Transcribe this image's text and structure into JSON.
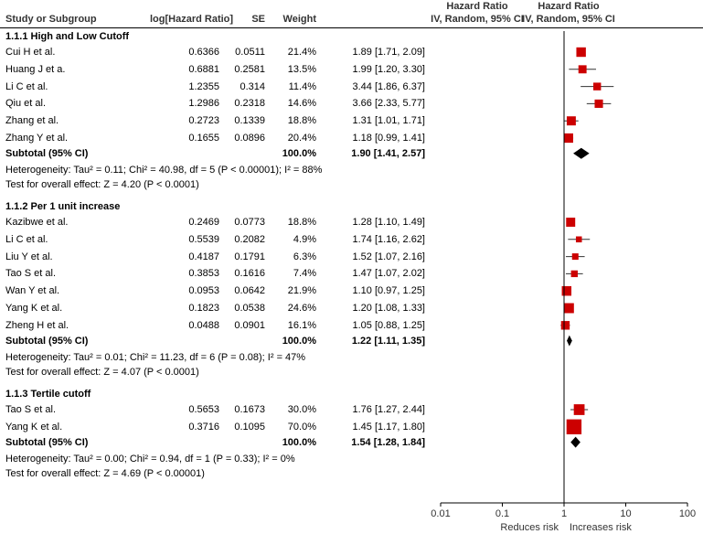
{
  "header": {
    "study": "Study or Subgroup",
    "logHR": "log[Hazard Ratio]",
    "se": "SE",
    "weight": "Weight",
    "hr_title": "Hazard Ratio",
    "hr_sub": "IV, Random, 95% CI",
    "plot_title": "Hazard Ratio",
    "plot_sub": "IV, Random, 95% CI"
  },
  "chart_data": {
    "type": "forest",
    "x_scale": "log",
    "xlim": [
      0.01,
      100
    ],
    "x_ticks": [
      "0.01",
      "0.1",
      "1",
      "10",
      "100"
    ],
    "favours_left": "Reduces risk",
    "favours_right": "Increases risk",
    "colors": {
      "study_marker": "#cc0000",
      "ci_line": "#333333",
      "diamond": "#000000"
    },
    "groups": [
      {
        "name": "1.1.1 High and Low Cutoff",
        "studies": [
          {
            "study": "Cui H et al.",
            "logHR": "0.6366",
            "se": "0.0511",
            "weight": "21.4%",
            "hr_text": "1.89 [1.71, 2.09]",
            "hr": 1.89,
            "lo": 1.71,
            "hi": 2.09,
            "w": 21.4
          },
          {
            "study": "Huang J et a.",
            "logHR": "0.6881",
            "se": "0.2581",
            "weight": "13.5%",
            "hr_text": "1.99 [1.20, 3.30]",
            "hr": 1.99,
            "lo": 1.2,
            "hi": 3.3,
            "w": 13.5
          },
          {
            "study": "Li C et al.",
            "logHR": "1.2355",
            "se": "0.314",
            "weight": "11.4%",
            "hr_text": "3.44 [1.86, 6.37]",
            "hr": 3.44,
            "lo": 1.86,
            "hi": 6.37,
            "w": 11.4
          },
          {
            "study": "Qiu et al.",
            "logHR": "1.2986",
            "se": "0.2318",
            "weight": "14.6%",
            "hr_text": "3.66 [2.33, 5.77]",
            "hr": 3.66,
            "lo": 2.33,
            "hi": 5.77,
            "w": 14.6
          },
          {
            "study": "Zhang et al.",
            "logHR": "0.2723",
            "se": "0.1339",
            "weight": "18.8%",
            "hr_text": "1.31 [1.01, 1.71]",
            "hr": 1.31,
            "lo": 1.01,
            "hi": 1.71,
            "w": 18.8
          },
          {
            "study": "Zhang Y et al.",
            "logHR": "0.1655",
            "se": "0.0896",
            "weight": "20.4%",
            "hr_text": "1.18 [0.99, 1.41]",
            "hr": 1.18,
            "lo": 0.99,
            "hi": 1.41,
            "w": 20.4
          }
        ],
        "subtotal": {
          "label": "Subtotal (95% CI)",
          "weight": "100.0%",
          "hr_text": "1.90 [1.41, 2.57]",
          "hr": 1.9,
          "lo": 1.41,
          "hi": 2.57
        },
        "heterogeneity": "Heterogeneity: Tau² = 0.11; Chi² = 40.98, df = 5 (P < 0.00001); I² = 88%",
        "overall": "Test for overall effect: Z = 4.20 (P < 0.0001)"
      },
      {
        "name": "1.1.2 Per 1 unit increase",
        "studies": [
          {
            "study": "Kazibwe et al.",
            "logHR": "0.2469",
            "se": "0.0773",
            "weight": "18.8%",
            "hr_text": "1.28 [1.10, 1.49]",
            "hr": 1.28,
            "lo": 1.1,
            "hi": 1.49,
            "w": 18.8
          },
          {
            "study": "Li C et al.",
            "logHR": "0.5539",
            "se": "0.2082",
            "weight": "4.9%",
            "hr_text": "1.74 [1.16, 2.62]",
            "hr": 1.74,
            "lo": 1.16,
            "hi": 2.62,
            "w": 4.9
          },
          {
            "study": "Liu Y et al.",
            "logHR": "0.4187",
            "se": "0.1791",
            "weight": "6.3%",
            "hr_text": "1.52 [1.07, 2.16]",
            "hr": 1.52,
            "lo": 1.07,
            "hi": 2.16,
            "w": 6.3
          },
          {
            "study": "Tao S et al.",
            "logHR": "0.3853",
            "se": "0.1616",
            "weight": "7.4%",
            "hr_text": "1.47 [1.07, 2.02]",
            "hr": 1.47,
            "lo": 1.07,
            "hi": 2.02,
            "w": 7.4
          },
          {
            "study": "Wan Y et al.",
            "logHR": "0.0953",
            "se": "0.0642",
            "weight": "21.9%",
            "hr_text": "1.10 [0.97, 1.25]",
            "hr": 1.1,
            "lo": 0.97,
            "hi": 1.25,
            "w": 21.9
          },
          {
            "study": "Yang K et al.",
            "logHR": "0.1823",
            "se": "0.0538",
            "weight": "24.6%",
            "hr_text": "1.20 [1.08, 1.33]",
            "hr": 1.2,
            "lo": 1.08,
            "hi": 1.33,
            "w": 24.6
          },
          {
            "study": "Zheng H et al.",
            "logHR": "0.0488",
            "se": "0.0901",
            "weight": "16.1%",
            "hr_text": "1.05 [0.88, 1.25]",
            "hr": 1.05,
            "lo": 0.88,
            "hi": 1.25,
            "w": 16.1
          }
        ],
        "subtotal": {
          "label": "Subtotal (95% CI)",
          "weight": "100.0%",
          "hr_text": "1.22 [1.11, 1.35]",
          "hr": 1.22,
          "lo": 1.11,
          "hi": 1.35
        },
        "heterogeneity": "Heterogeneity: Tau² = 0.01; Chi² = 11.23, df = 6 (P = 0.08); I² = 47%",
        "overall": "Test for overall effect: Z = 4.07 (P < 0.0001)"
      },
      {
        "name": "1.1.3 Tertile cutoff",
        "studies": [
          {
            "study": "Tao S et al.",
            "logHR": "0.5653",
            "se": "0.1673",
            "weight": "30.0%",
            "hr_text": "1.76 [1.27, 2.44]",
            "hr": 1.76,
            "lo": 1.27,
            "hi": 2.44,
            "w": 30.0
          },
          {
            "study": "Yang K et al.",
            "logHR": "0.3716",
            "se": "0.1095",
            "weight": "70.0%",
            "hr_text": "1.45 [1.17, 1.80]",
            "hr": 1.45,
            "lo": 1.17,
            "hi": 1.8,
            "w": 70.0
          }
        ],
        "subtotal": {
          "label": "Subtotal (95% CI)",
          "weight": "100.0%",
          "hr_text": "1.54 [1.28, 1.84]",
          "hr": 1.54,
          "lo": 1.28,
          "hi": 1.84
        },
        "heterogeneity": "Heterogeneity: Tau² = 0.00; Chi² = 0.94, df = 1 (P = 0.33); I² = 0%",
        "overall": "Test for overall effect: Z = 4.69 (P < 0.00001)"
      }
    ]
  }
}
